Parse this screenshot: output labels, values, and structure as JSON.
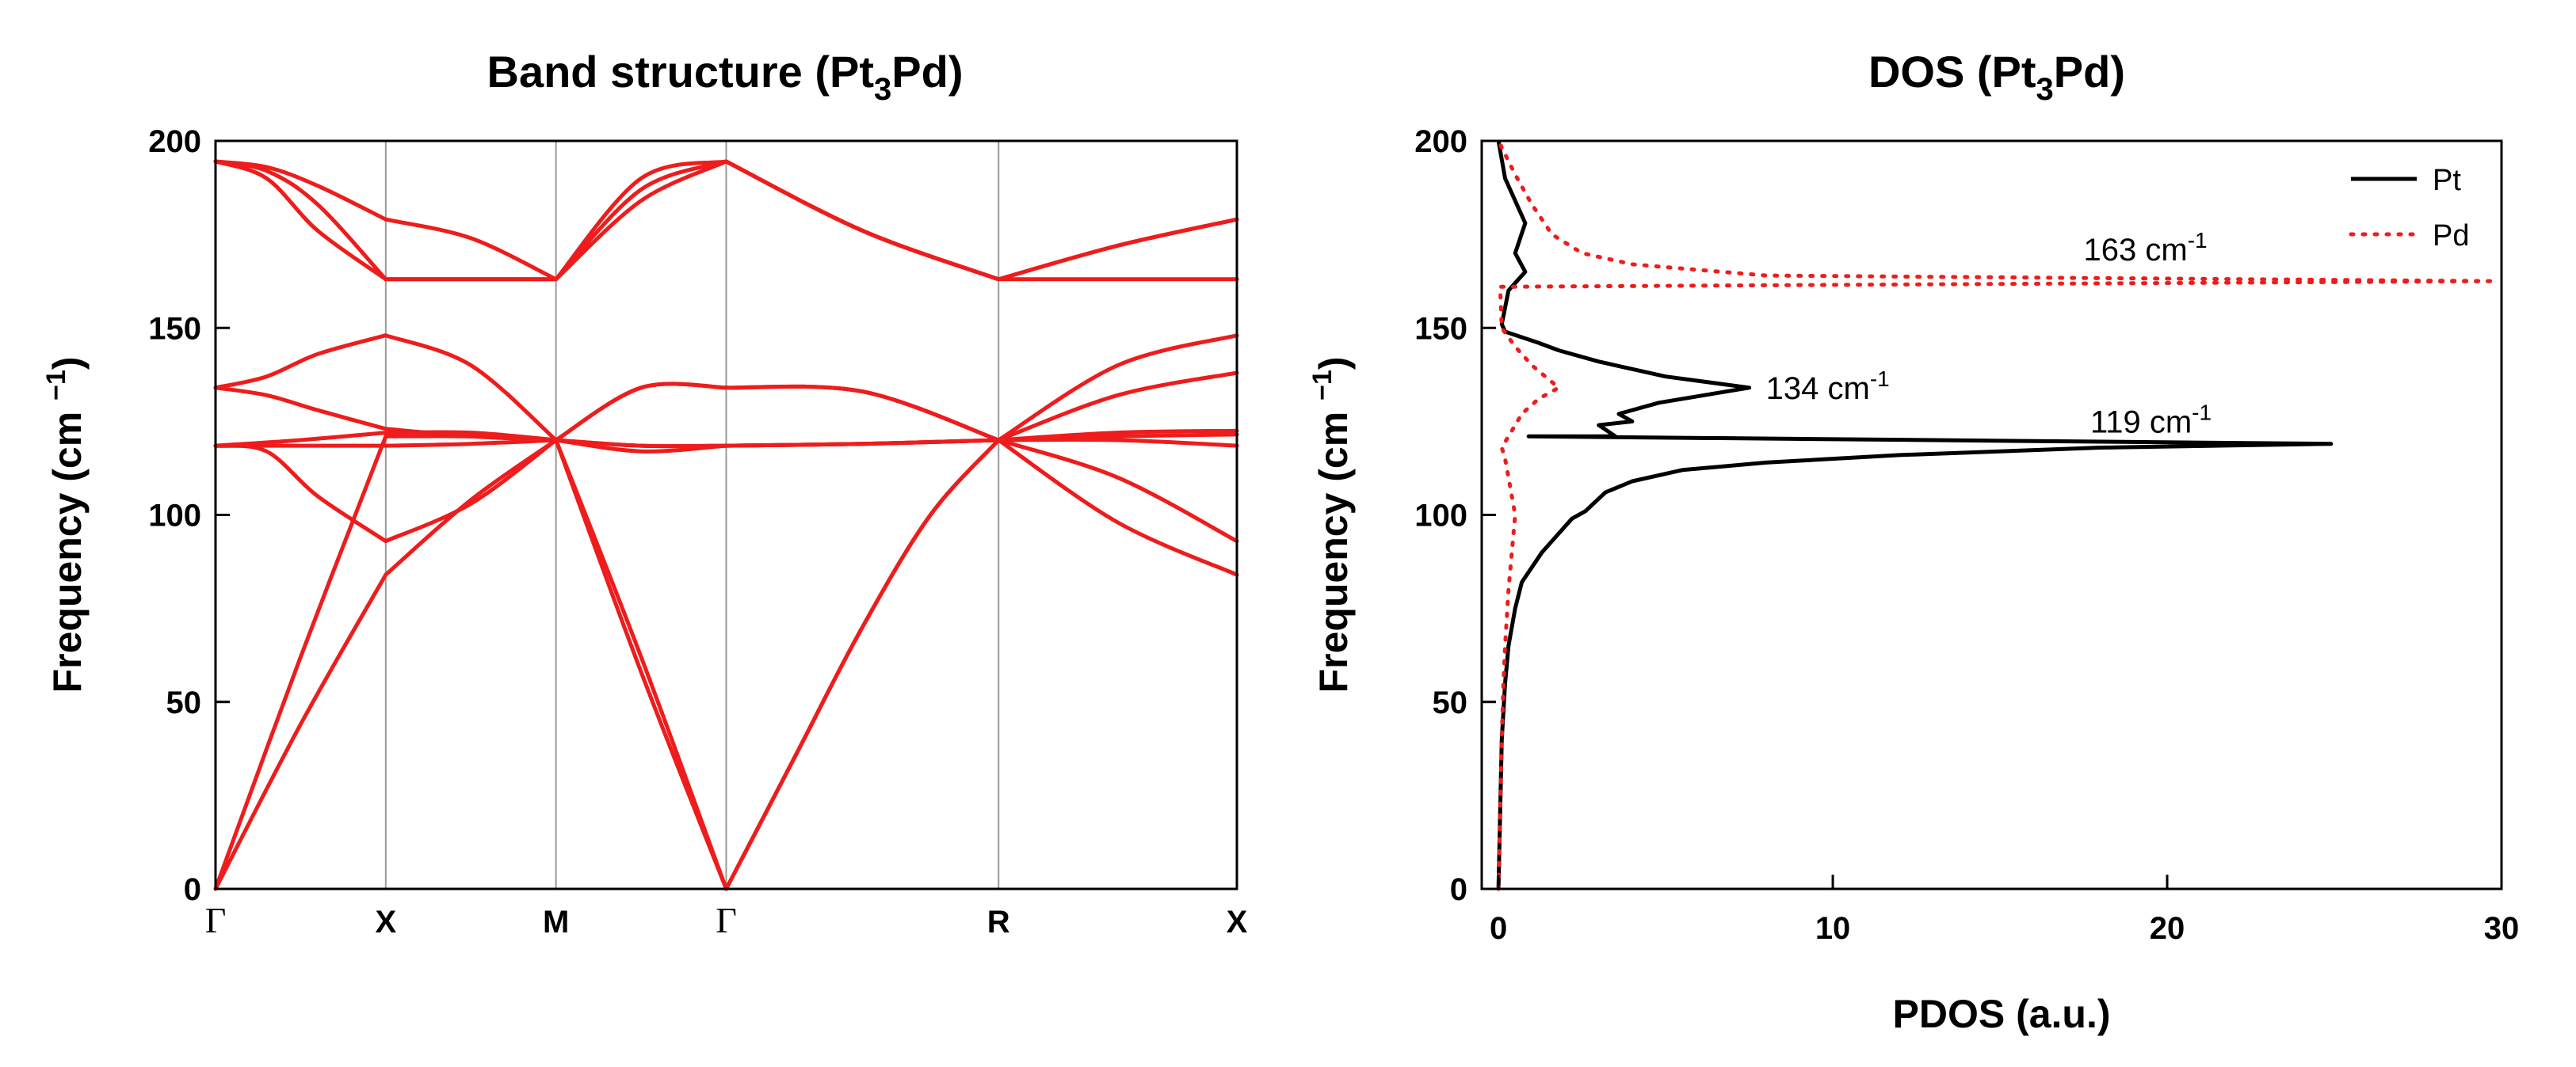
{
  "chart_data": [
    {
      "type": "line",
      "title": "Band structure (Pt3Pd)",
      "title_main": "Band structure (Pt",
      "title_sub": "3",
      "title_end": "Pd)",
      "xlabel": "",
      "ylabel": "Frequency (cm ⁻1)",
      "ylabel_main": "Frequency (cm ",
      "ylabel_sup": "−1",
      "ylabel_end": ")",
      "ylim": [
        0,
        200
      ],
      "yticks": [
        "0",
        "50",
        "100",
        "150",
        "200"
      ],
      "high_symmetry_points": [
        "Γ",
        "X",
        "M",
        "Γ",
        "R",
        "X"
      ],
      "x_positions": [
        0,
        1,
        2,
        3,
        4.6,
        6.0
      ],
      "xlim": [
        0,
        6.0
      ],
      "series": [
        {
          "name": "band-1",
          "x": [
            0,
            0.5,
            1,
            1.5,
            2,
            2.5,
            3,
            3.4,
            3.8,
            4.2,
            4.6,
            5.3,
            6.0
          ],
          "values": [
            0,
            44,
            84,
            104,
            120,
            58,
            0,
            35,
            70,
            100,
            120,
            98,
            84
          ]
        },
        {
          "name": "band-2",
          "x": [
            0,
            0.5,
            1,
            1.5,
            2,
            2.5,
            3,
            3.4,
            3.8,
            4.2,
            4.6,
            5.3,
            6.0
          ],
          "values": [
            0,
            62,
            121,
            121,
            120,
            62,
            0,
            35,
            70,
            100,
            120,
            110,
            93
          ]
        },
        {
          "name": "band-3",
          "x": [
            0,
            0.3,
            0.6,
            1,
            1.5,
            2,
            2.5,
            3,
            3.8,
            4.6,
            5.3,
            6.0
          ],
          "values": [
            118.5,
            117,
            105,
            93,
            103,
            120,
            117,
            118.5,
            119,
            120,
            120,
            118.5
          ]
        },
        {
          "name": "band-4",
          "x": [
            0,
            0.5,
            1,
            1.5,
            2,
            2.5,
            3,
            3.8,
            4.6,
            5.3,
            6.0
          ],
          "values": [
            118.5,
            118.5,
            118.5,
            119,
            120,
            118.5,
            118.5,
            119,
            120,
            121,
            121.5
          ]
        },
        {
          "name": "band-5",
          "x": [
            0,
            0.5,
            1,
            1.5,
            2,
            2.5,
            3,
            3.8,
            4.6,
            5.3,
            6.0
          ],
          "values": [
            118.5,
            120,
            122,
            122,
            120,
            118.5,
            118.5,
            119,
            120,
            122,
            122.5
          ]
        },
        {
          "name": "band-6",
          "x": [
            0,
            0.3,
            0.6,
            1,
            1.5,
            2,
            2.5,
            3,
            3.8,
            4.6,
            5.3,
            6.0
          ],
          "values": [
            134,
            132,
            128,
            123,
            121,
            120,
            134,
            134,
            133,
            120,
            140,
            148
          ]
        },
        {
          "name": "band-7",
          "x": [
            0,
            0.3,
            0.6,
            1,
            1.5,
            2,
            2.5,
            3,
            3.8,
            4.6,
            5.3,
            6.0
          ],
          "values": [
            134,
            137,
            143,
            148,
            140,
            120,
            134,
            134,
            133,
            120,
            132,
            138
          ]
        },
        {
          "name": "band-8",
          "x": [
            0,
            0.3,
            0.6,
            1,
            1.5,
            2,
            2.5,
            3,
            3.8,
            4.6,
            5.3,
            6.0
          ],
          "values": [
            194.5,
            190,
            176,
            163,
            163,
            163,
            184,
            194.5,
            176,
            163,
            163,
            163
          ]
        },
        {
          "name": "band-9",
          "x": [
            0,
            0.3,
            0.6,
            1,
            1.5,
            2,
            2.5,
            3,
            3.8,
            4.6,
            5.3,
            6.0
          ],
          "values": [
            194.5,
            192,
            183,
            163,
            163,
            163,
            187,
            194.5,
            176,
            163,
            172,
            179
          ]
        },
        {
          "name": "band-10",
          "x": [
            0,
            0.3,
            0.6,
            1,
            1.5,
            2,
            2.5,
            3,
            3.8,
            4.6,
            5.3,
            6.0
          ],
          "values": [
            194.5,
            193,
            188,
            179,
            174,
            163,
            190,
            194.5,
            176,
            163,
            172,
            179
          ]
        }
      ]
    },
    {
      "type": "line",
      "title": "DOS (Pt3Pd)",
      "title_main": "DOS (Pt",
      "title_sub": "3",
      "title_end": "Pd)",
      "xlabel": "PDOS (a.u.)",
      "ylabel": "Frequency (cm ⁻1)",
      "ylabel_main": "Frequency (cm ",
      "ylabel_sup": "−1",
      "ylabel_end": ")",
      "xlim": [
        -0.5,
        30
      ],
      "ylim": [
        0,
        200
      ],
      "xticks": [
        "0",
        "10",
        "20",
        "30"
      ],
      "yticks": [
        "0",
        "50",
        "100",
        "150",
        "200"
      ],
      "legend": {
        "position": "top-right",
        "entries": [
          "Pt",
          "Pd"
        ]
      },
      "annotations": [
        {
          "text": "163 cm",
          "sup": "-1",
          "x": 17.5,
          "y": 171
        },
        {
          "text": "134 cm",
          "sup": "-1",
          "x": 8,
          "y": 134
        },
        {
          "text": "119 cm",
          "sup": "-1",
          "x": 17.7,
          "y": 125
        }
      ],
      "series": [
        {
          "name": "Pt",
          "style": "solid",
          "x": [
            0,
            0.05,
            0.1,
            0.2,
            0.3,
            0.5,
            0.7,
            1.0,
            1.3,
            1.6,
            1.8,
            2.2,
            2.6,
            3.2,
            4.0,
            5.5,
            8.0,
            12.0,
            18.0,
            24.9,
            0.9,
            3.5,
            3.0,
            4.0,
            3.6,
            4.8,
            7.5,
            5.0,
            3.0,
            1.8,
            1.2,
            0.2,
            0.1,
            0.3,
            0.8,
            0.5,
            0.8,
            0.2,
            0
          ],
          "values": [
            0,
            20,
            40,
            55,
            65,
            75,
            82,
            86,
            90,
            93,
            95,
            99,
            101,
            106,
            109,
            112,
            114,
            116,
            118,
            119,
            121,
            121,
            124,
            125,
            127,
            130,
            134,
            137,
            141,
            144,
            146,
            149,
            151,
            160,
            165,
            170,
            178,
            190,
            200
          ]
        },
        {
          "name": "Pd",
          "style": "dotted",
          "x": [
            0,
            0.05,
            0.1,
            0.15,
            0.2,
            0.3,
            0.4,
            0.5,
            0.3,
            0.2,
            0.1,
            0.3,
            0.7,
            1.2,
            1.8,
            1.0,
            0.5,
            0.1,
            0.05,
            29.8,
            8.0,
            4.0,
            2.5,
            1.6,
            1.0,
            0.5,
            0
          ],
          "values": [
            0,
            20,
            40,
            55,
            65,
            80,
            90,
            100,
            110,
            115,
            118,
            121,
            127,
            131,
            134,
            140,
            145,
            150,
            161,
            162.5,
            164,
            167,
            170,
            175,
            183,
            191,
            200
          ]
        }
      ]
    }
  ]
}
